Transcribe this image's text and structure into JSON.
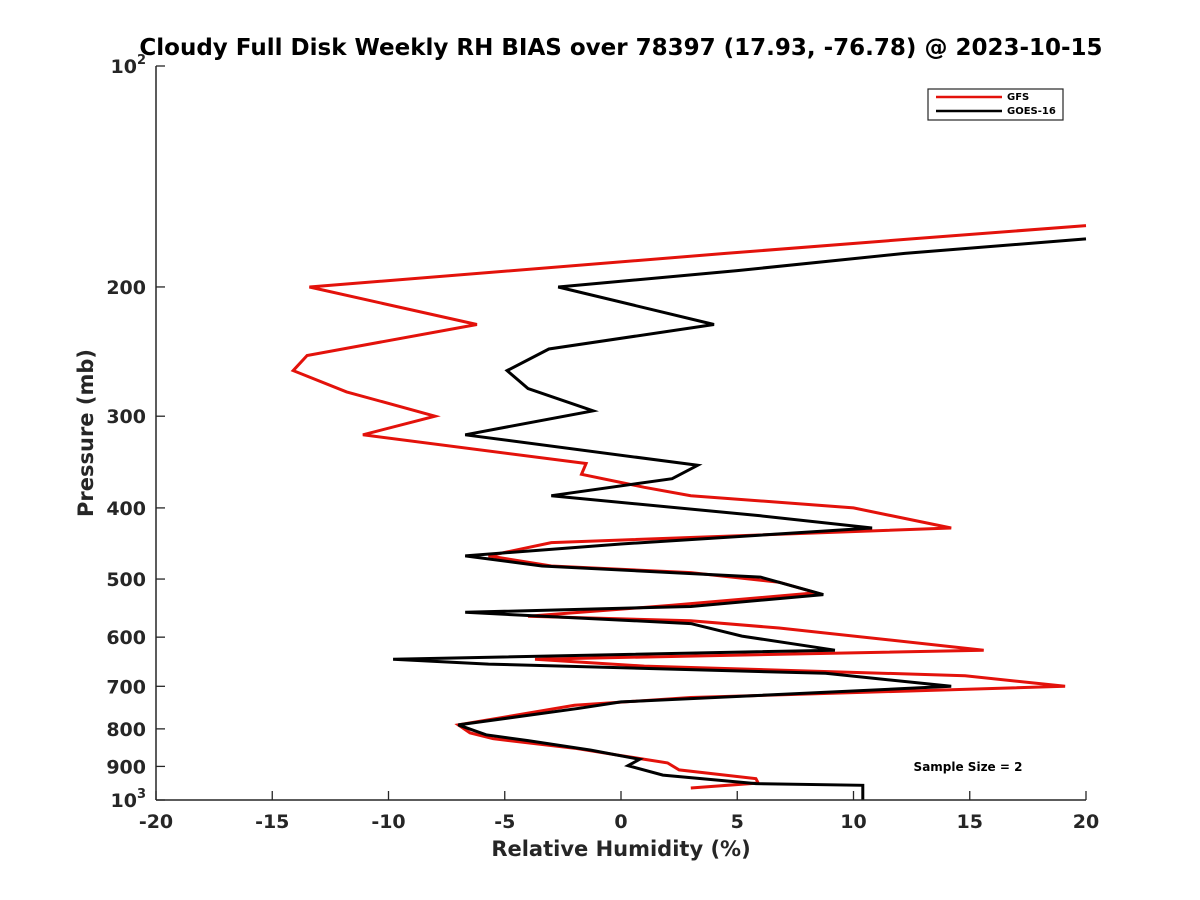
{
  "chart_data": {
    "type": "line",
    "title": "Cloudy Full Disk Weekly RH BIAS over 78397 (17.93, -76.78) @ 2023-10-15",
    "xlabel": "Relative Humidity (%)",
    "ylabel": "Pressure (mb)",
    "xlim": [
      -20,
      20
    ],
    "ylim": [
      100,
      1000
    ],
    "y_scale": "log",
    "y_reversed": true,
    "grid": false,
    "legend_placement": "top-right",
    "x_ticks": [
      -20,
      -15,
      -10,
      -5,
      0,
      5,
      10,
      15,
      20
    ],
    "x_tick_labels": [
      "-20",
      "-15",
      "-10",
      "-5",
      "0",
      "5",
      "10",
      "15",
      "20"
    ],
    "y_ticks": [
      200,
      300,
      400,
      500,
      600,
      700,
      800,
      900
    ],
    "y_tick_labels": [
      "200",
      "300",
      "400",
      "500",
      "600",
      "700",
      "800",
      "900"
    ],
    "y_decade_ticks": [
      {
        "value": 100,
        "base": "10",
        "exp": "2"
      },
      {
        "value": 1000,
        "base": "10",
        "exp": "3"
      }
    ],
    "annotation": "Sample Size = 2",
    "series": [
      {
        "name": "GFS",
        "color": "#e3120b",
        "points": [
          [
            20.0,
            165
          ],
          [
            12.5,
            172
          ],
          [
            4.5,
            180
          ],
          [
            -13.4,
            200
          ],
          [
            -6.2,
            225
          ],
          [
            -13.5,
            248
          ],
          [
            -14.1,
            260
          ],
          [
            -11.8,
            278
          ],
          [
            -8.0,
            300
          ],
          [
            -11.1,
            318
          ],
          [
            -1.5,
            348
          ],
          [
            -1.7,
            360
          ],
          [
            1.0,
            375
          ],
          [
            3.0,
            385
          ],
          [
            10.0,
            400
          ],
          [
            14.2,
            426
          ],
          [
            -3.0,
            446
          ],
          [
            -5.7,
            465
          ],
          [
            -3.0,
            480
          ],
          [
            3.0,
            490
          ],
          [
            6.8,
            505
          ],
          [
            8.4,
            522
          ],
          [
            2.2,
            543
          ],
          [
            -4.0,
            562
          ],
          [
            3.0,
            570
          ],
          [
            6.8,
            583
          ],
          [
            15.6,
            625
          ],
          [
            -3.7,
            643
          ],
          [
            1.0,
            657
          ],
          [
            14.8,
            677
          ],
          [
            19.1,
            700
          ],
          [
            3.0,
            725
          ],
          [
            -2.0,
            743
          ],
          [
            -7.0,
            790
          ],
          [
            -6.5,
            810
          ],
          [
            -5.5,
            825
          ],
          [
            -2.0,
            850
          ],
          [
            0.0,
            870
          ],
          [
            2.0,
            890
          ],
          [
            2.5,
            910
          ],
          [
            5.8,
            935
          ],
          [
            5.9,
            948
          ],
          [
            3.0,
            963
          ]
        ]
      },
      {
        "name": "GOES-16",
        "color": "#000000",
        "points": [
          [
            20.0,
            172
          ],
          [
            12.2,
            180
          ],
          [
            5.0,
            190
          ],
          [
            -2.7,
            200
          ],
          [
            4.0,
            225
          ],
          [
            -3.1,
            243
          ],
          [
            -4.9,
            260
          ],
          [
            -4.0,
            275
          ],
          [
            -1.2,
            295
          ],
          [
            -6.7,
            318
          ],
          [
            3.3,
            350
          ],
          [
            2.2,
            365
          ],
          [
            -3.0,
            385
          ],
          [
            6.0,
            410
          ],
          [
            10.8,
            426
          ],
          [
            0.0,
            448
          ],
          [
            -6.7,
            465
          ],
          [
            -3.4,
            480
          ],
          [
            6.0,
            497
          ],
          [
            8.7,
            525
          ],
          [
            3.0,
            545
          ],
          [
            -6.7,
            555
          ],
          [
            3.0,
            575
          ],
          [
            5.2,
            598
          ],
          [
            9.2,
            625
          ],
          [
            -9.8,
            643
          ],
          [
            -5.7,
            653
          ],
          [
            8.8,
            672
          ],
          [
            14.2,
            700
          ],
          [
            0.0,
            735
          ],
          [
            -1.8,
            750
          ],
          [
            -7.0,
            790
          ],
          [
            -5.8,
            815
          ],
          [
            -4.0,
            830
          ],
          [
            -1.3,
            855
          ],
          [
            0.8,
            880
          ],
          [
            0.3,
            898
          ],
          [
            1.8,
            925
          ],
          [
            5.8,
            950
          ],
          [
            10.4,
            955
          ],
          [
            10.4,
            1000
          ]
        ]
      }
    ]
  }
}
